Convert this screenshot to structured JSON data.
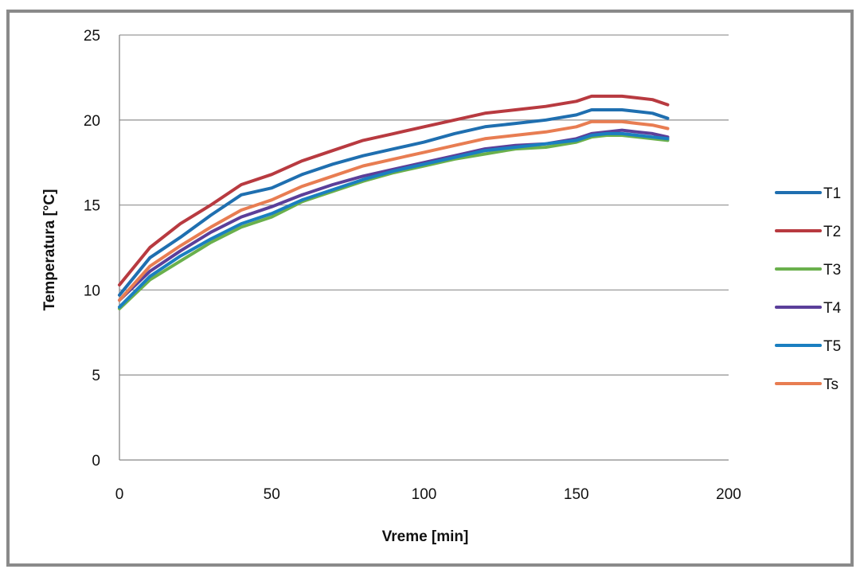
{
  "chart_data": {
    "type": "line",
    "title": "",
    "xlabel": "Vreme [min]",
    "ylabel": "Temperatura [°C]",
    "xlim": [
      0,
      200
    ],
    "ylim": [
      0,
      25
    ],
    "xticks": [
      "0",
      "50",
      "100",
      "150",
      "200"
    ],
    "yticks": [
      "0",
      "5",
      "10",
      "15",
      "20",
      "25"
    ],
    "grid": "horizontal",
    "legend_position": "right",
    "x": [
      0,
      10,
      20,
      30,
      40,
      50,
      60,
      70,
      80,
      90,
      100,
      110,
      120,
      130,
      140,
      150,
      155,
      160,
      165,
      170,
      175,
      180
    ],
    "series": [
      {
        "name": "T1",
        "color": "#1f6fb0",
        "values": [
          9.7,
          11.9,
          13.1,
          14.4,
          15.6,
          16.0,
          16.8,
          17.4,
          17.9,
          18.3,
          18.7,
          19.2,
          19.6,
          19.8,
          20.0,
          20.3,
          20.6,
          20.6,
          20.6,
          20.5,
          20.4,
          20.1
        ]
      },
      {
        "name": "T2",
        "color": "#b83a40",
        "values": [
          10.3,
          12.5,
          13.9,
          15.0,
          16.2,
          16.8,
          17.6,
          18.2,
          18.8,
          19.2,
          19.6,
          20.0,
          20.4,
          20.6,
          20.8,
          21.1,
          21.4,
          21.4,
          21.4,
          21.3,
          21.2,
          20.9
        ]
      },
      {
        "name": "T3",
        "color": "#6ab04c",
        "values": [
          8.9,
          10.6,
          11.7,
          12.8,
          13.7,
          14.3,
          15.2,
          15.8,
          16.4,
          16.9,
          17.3,
          17.7,
          18.0,
          18.3,
          18.4,
          18.7,
          19.0,
          19.1,
          19.1,
          19.0,
          18.9,
          18.8
        ]
      },
      {
        "name": "T4",
        "color": "#5b3f9a",
        "values": [
          9.4,
          11.1,
          12.3,
          13.4,
          14.3,
          14.9,
          15.6,
          16.2,
          16.7,
          17.1,
          17.5,
          17.9,
          18.3,
          18.5,
          18.6,
          18.9,
          19.2,
          19.3,
          19.4,
          19.3,
          19.2,
          19.0
        ]
      },
      {
        "name": "T5",
        "color": "#1a7fc0",
        "values": [
          9.0,
          10.8,
          12.0,
          13.0,
          13.9,
          14.5,
          15.3,
          15.9,
          16.5,
          17.0,
          17.4,
          17.8,
          18.2,
          18.4,
          18.6,
          18.8,
          19.1,
          19.2,
          19.2,
          19.1,
          19.0,
          18.9
        ]
      },
      {
        "name": "Ts",
        "color": "#e87d52",
        "values": [
          9.4,
          11.4,
          12.6,
          13.7,
          14.7,
          15.3,
          16.1,
          16.7,
          17.3,
          17.7,
          18.1,
          18.5,
          18.9,
          19.1,
          19.3,
          19.6,
          19.9,
          19.9,
          19.9,
          19.8,
          19.7,
          19.5
        ]
      }
    ]
  }
}
